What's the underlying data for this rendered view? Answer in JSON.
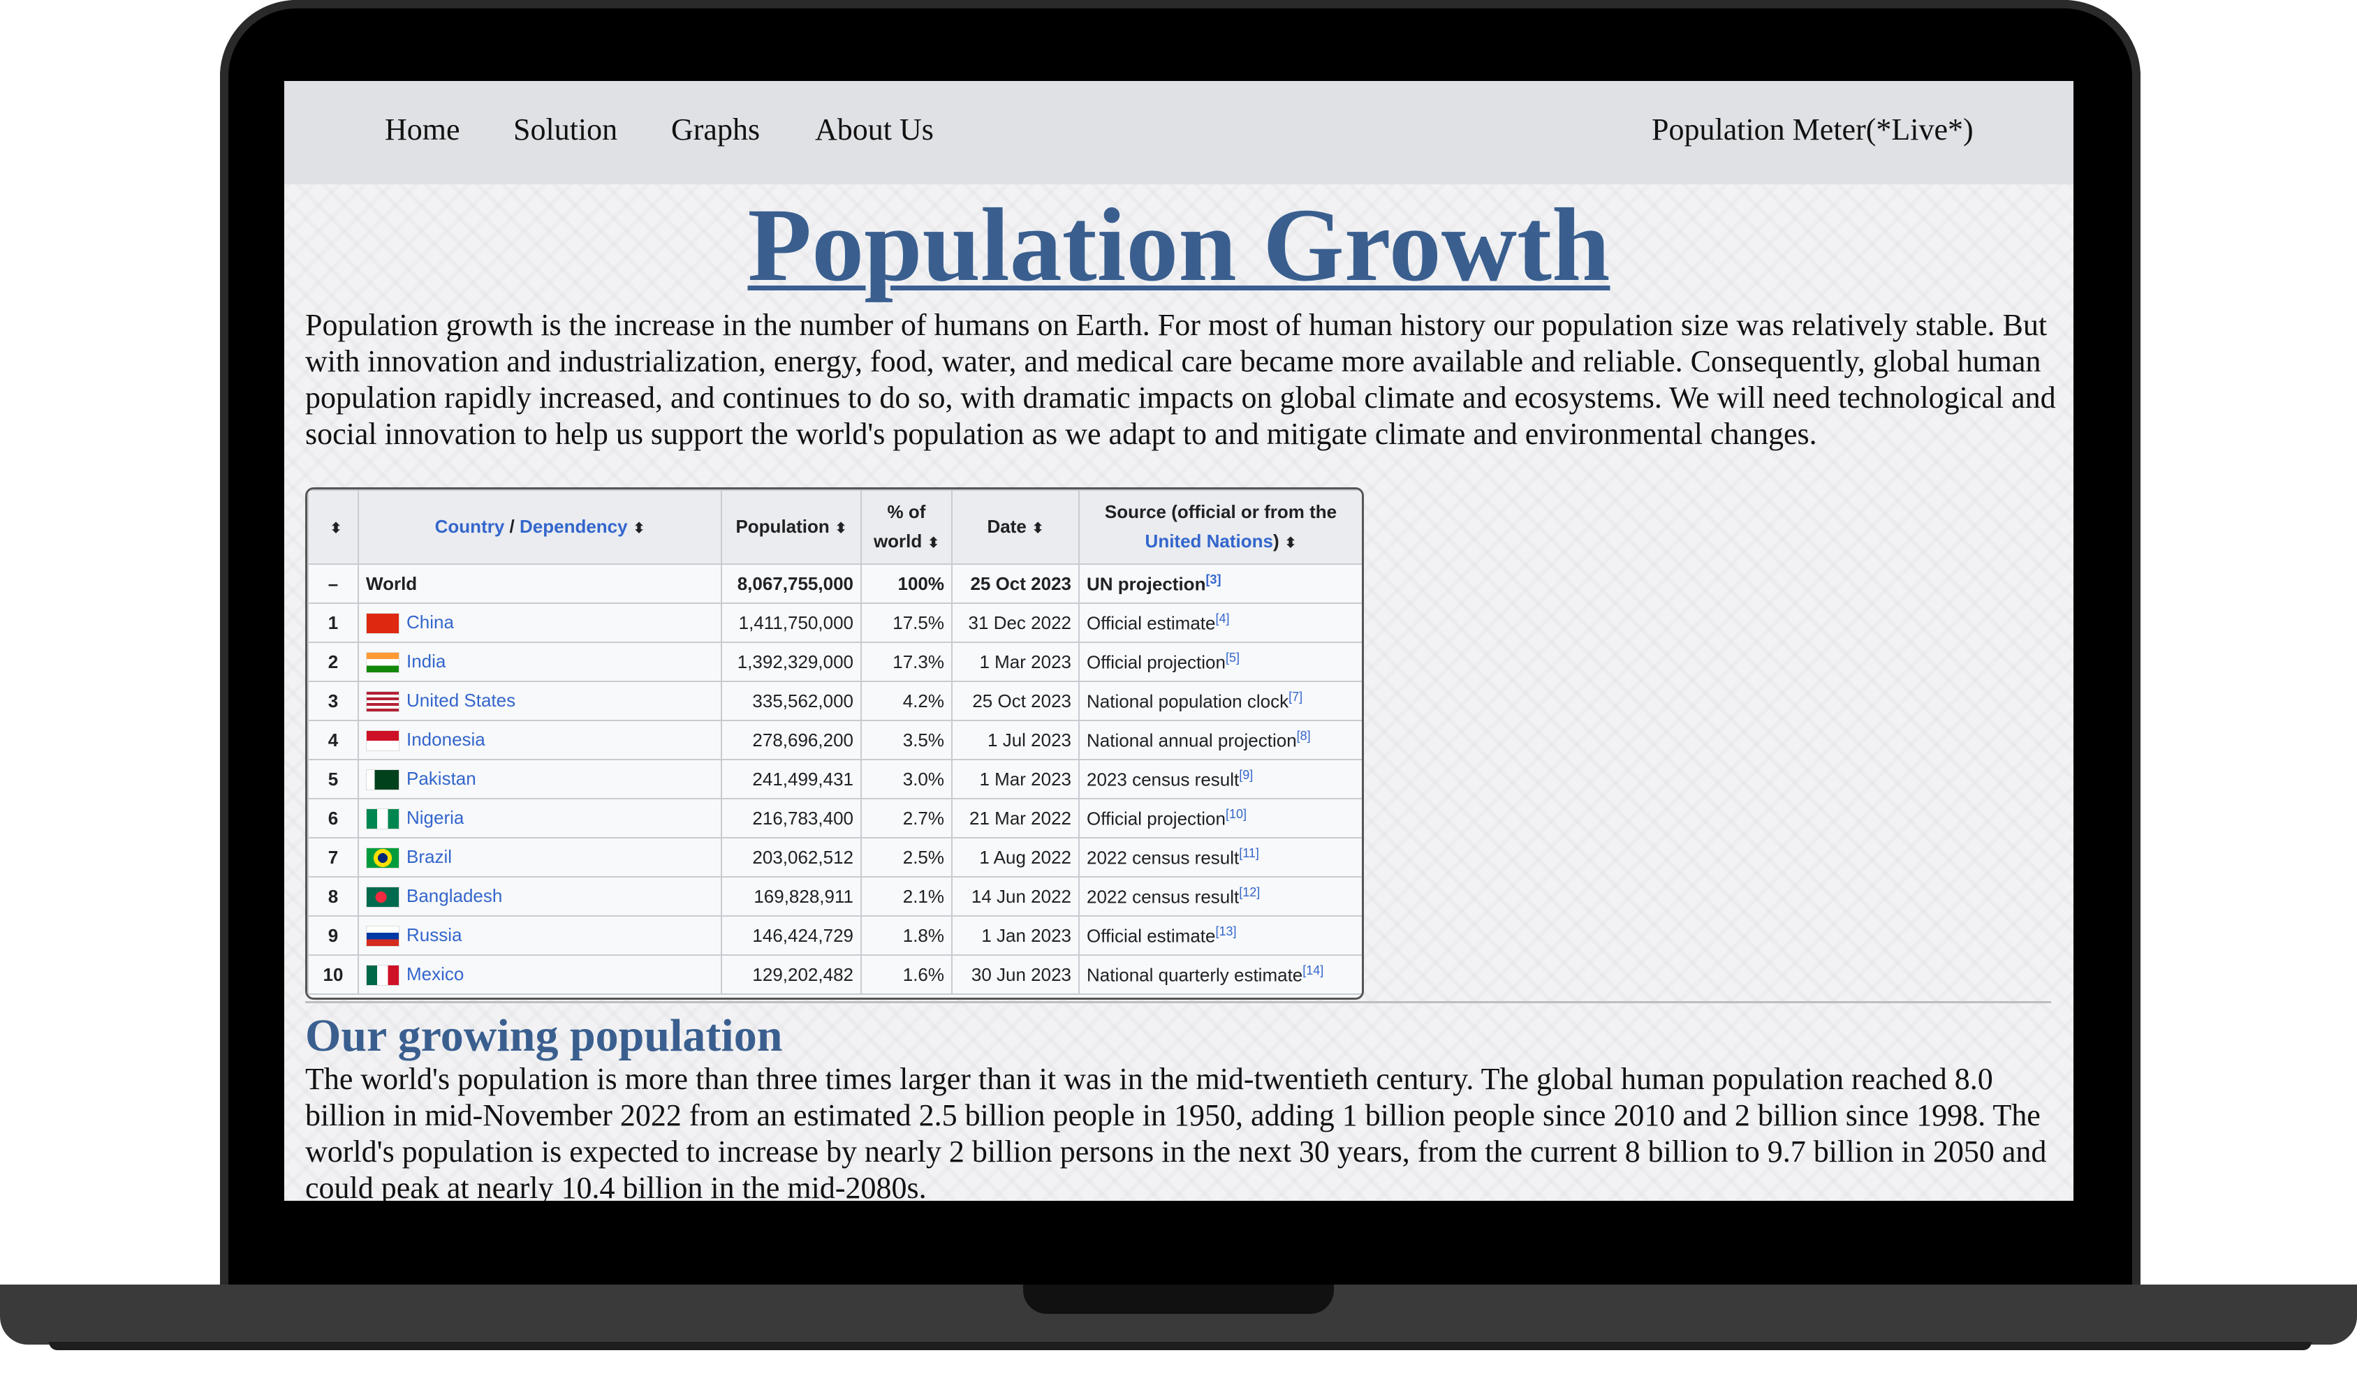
{
  "nav": {
    "items": [
      "Home",
      "Solution",
      "Graphs",
      "About Us"
    ],
    "meter_label": "Population Meter(*Live*)"
  },
  "title": "Population Growth",
  "intro": "Population growth is the increase in the number of humans on Earth. For most of human history our population size was relatively stable. But with innovation and industrialization, energy, food, water, and medical care became more available and reliable. Consequently, global human population rapidly increased, and continues to do so, with dramatic impacts on global climate and ecosystems. We will need technological and social innovation to help us support the world's population as we adapt to and mitigate climate and environmental changes.",
  "table": {
    "headers": {
      "rank": "",
      "country": "Country",
      "country_sep": " / ",
      "dependency": "Dependency",
      "population": "Population",
      "percent": "% of world",
      "date": "Date",
      "source_a": "Source (official or from the ",
      "source_link": "United Nations",
      "source_b": ")"
    },
    "world": {
      "rank": "–",
      "country": "World",
      "population": "8,067,755,000",
      "percent": "100%",
      "date": "25 Oct 2023",
      "source": "UN projection",
      "ref": "[3]"
    },
    "rows": [
      {
        "rank": "1",
        "country": "China",
        "flag": "china",
        "population": "1,411,750,000",
        "percent": "17.5%",
        "date": "31 Dec 2022",
        "source": "Official estimate",
        "ref": "[4]"
      },
      {
        "rank": "2",
        "country": "India",
        "flag": "india",
        "population": "1,392,329,000",
        "percent": "17.3%",
        "date": "1 Mar 2023",
        "source": "Official projection",
        "ref": "[5]"
      },
      {
        "rank": "3",
        "country": "United States",
        "flag": "usa",
        "population": "335,562,000",
        "percent": "4.2%",
        "date": "25 Oct 2023",
        "source": "National population clock",
        "ref": "[7]"
      },
      {
        "rank": "4",
        "country": "Indonesia",
        "flag": "indonesia",
        "population": "278,696,200",
        "percent": "3.5%",
        "date": "1 Jul 2023",
        "source": "National annual projection",
        "ref": "[8]"
      },
      {
        "rank": "5",
        "country": "Pakistan",
        "flag": "pakistan",
        "population": "241,499,431",
        "percent": "3.0%",
        "date": "1 Mar 2023",
        "source": "2023 census result",
        "ref": "[9]"
      },
      {
        "rank": "6",
        "country": "Nigeria",
        "flag": "nigeria",
        "population": "216,783,400",
        "percent": "2.7%",
        "date": "21 Mar 2022",
        "source": "Official projection",
        "ref": "[10]"
      },
      {
        "rank": "7",
        "country": "Brazil",
        "flag": "brazil",
        "population": "203,062,512",
        "percent": "2.5%",
        "date": "1 Aug 2022",
        "source": "2022 census result",
        "ref": "[11]"
      },
      {
        "rank": "8",
        "country": "Bangladesh",
        "flag": "bangladesh",
        "population": "169,828,911",
        "percent": "2.1%",
        "date": "14 Jun 2022",
        "source": "2022 census result",
        "ref": "[12]"
      },
      {
        "rank": "9",
        "country": "Russia",
        "flag": "russia",
        "population": "146,424,729",
        "percent": "1.8%",
        "date": "1 Jan 2023",
        "source": "Official estimate",
        "ref": "[13]"
      },
      {
        "rank": "10",
        "country": "Mexico",
        "flag": "mexico",
        "population": "129,202,482",
        "percent": "1.6%",
        "date": "30 Jun 2023",
        "source": "National quarterly estimate",
        "ref": "[14]"
      }
    ]
  },
  "section2": {
    "heading": "Our growing population",
    "text": "The world's population is more than three times larger than it was in the mid-twentieth century. The global human population reached 8.0 billion in mid-November 2022 from an estimated 2.5 billion people in 1950, adding 1 billion people since 2010 and 2 billion since 1998. The world's population is expected to increase by nearly 2 billion persons in the next 30 years, from the current 8 billion to 9.7 billion in 2050 and could peak at nearly 10.4 billion in the mid-2080s."
  },
  "colors": {
    "heading": "#3a5f8f",
    "link": "#3366cc",
    "nav_bg": "#dfe1e5"
  }
}
